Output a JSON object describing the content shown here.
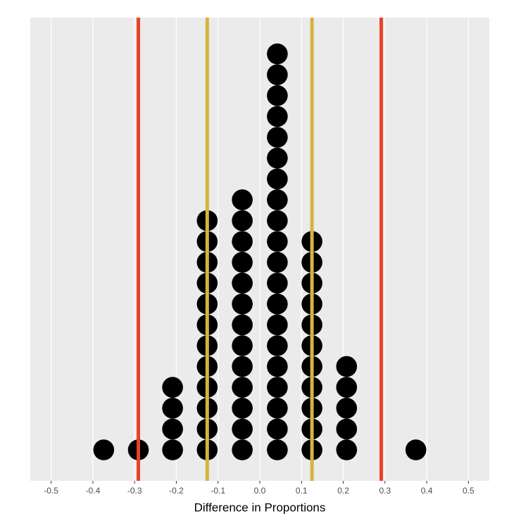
{
  "chart_data": {
    "type": "dotplot",
    "x_label": "Difference in Proportions",
    "x": [
      -0.374,
      -0.291,
      -0.209,
      -0.126,
      -0.042,
      0.042,
      0.125,
      0.208,
      0.374
    ],
    "values": [
      1,
      1,
      4,
      12,
      13,
      20,
      11,
      5,
      1
    ],
    "color": "#000000",
    "xlim": [
      -0.55,
      0.55
    ],
    "xticks": [
      -0.5,
      -0.4,
      -0.3,
      -0.2,
      -0.1,
      {
        "value": 0,
        "label": "0.0"
      },
      0.1,
      0.2,
      0.3,
      0.4,
      0.5
    ],
    "grid": true,
    "vlines": [
      {
        "value": -0.291,
        "color": "#e8432a"
      },
      {
        "value": 0.291,
        "color": "#e8432a"
      },
      {
        "value": -0.126,
        "color": "#d4b43c"
      },
      {
        "value": 0.125,
        "color": "#d4b43c"
      }
    ]
  }
}
